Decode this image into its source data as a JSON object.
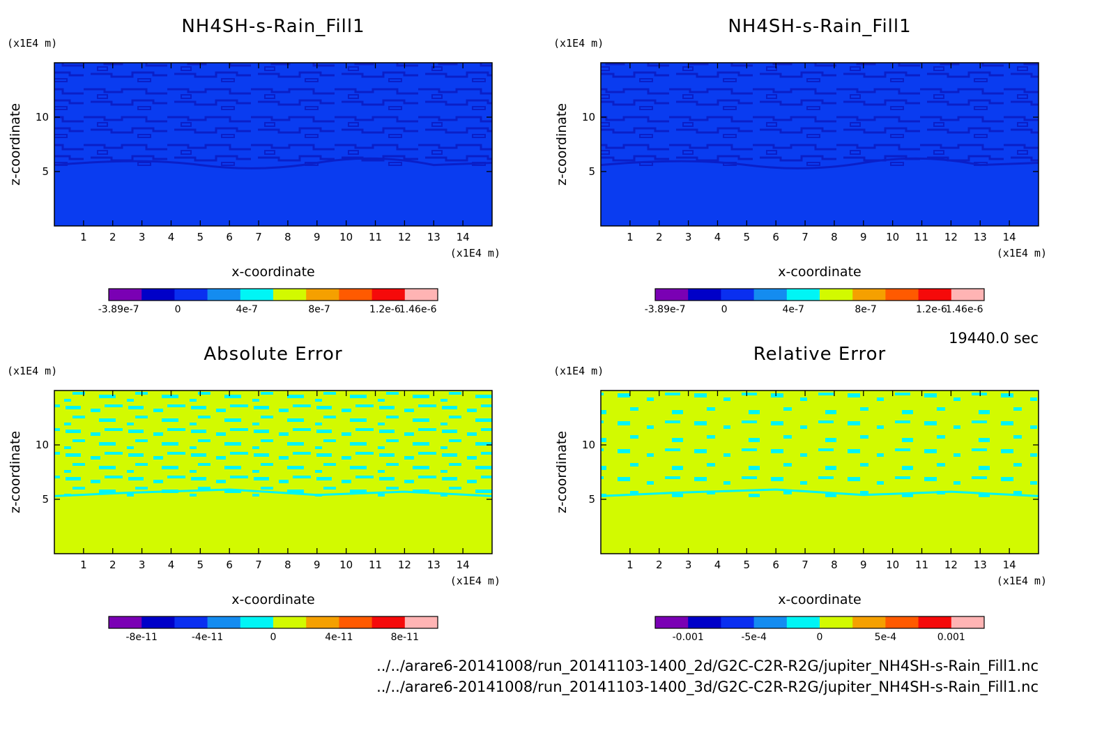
{
  "time_label": "19440.0 sec",
  "files": [
    "../../arare6-20141008/run_20141103-1400_2d/G2C-C2R-R2G/jupiter_NH4SH-s-Rain_Fill1.nc",
    "../../arare6-20141008/run_20141103-1400_3d/G2C-C2R-R2G/jupiter_NH4SH-s-Rain_Fill1.nc"
  ],
  "colors": {
    "palette": [
      "#7a00b4",
      "#0000c8",
      "#0a2ff0",
      "#148cf0",
      "#00f5f5",
      "#d2fa00",
      "#f5a000",
      "#ff5a00",
      "#f50a0a",
      "#ffb4b4"
    ],
    "field_dark": "#0a1fc8",
    "field_main": "#0a3cf0",
    "error_main": "#d2fa00",
    "error_alt": "#00f5f5"
  },
  "chart_data": [
    {
      "type": "heatmap",
      "title": "NH4SH-s-Rain_Fill1",
      "xlabel": "x-coordinate",
      "ylabel": "z-coordinate",
      "x_unit": "(x1E4 m)",
      "y_unit": "(x1E4 m)",
      "xlim": [
        0,
        15
      ],
      "ylim": [
        0,
        15
      ],
      "x_ticks": [
        "1",
        "2",
        "3",
        "4",
        "5",
        "6",
        "7",
        "8",
        "9",
        "10",
        "11",
        "12",
        "13",
        "14"
      ],
      "y_ticks": [
        "5",
        "10"
      ],
      "colorbar_labels": [
        "-3.89e-7",
        "0",
        "4e-7",
        "8e-7",
        "1.2e-6",
        "1.46e-6"
      ],
      "pattern": "field"
    },
    {
      "type": "heatmap",
      "title": "NH4SH-s-Rain_Fill1",
      "xlabel": "x-coordinate",
      "ylabel": "z-coordinate",
      "x_unit": "(x1E4 m)",
      "y_unit": "(x1E4 m)",
      "xlim": [
        0,
        15
      ],
      "ylim": [
        0,
        15
      ],
      "x_ticks": [
        "1",
        "2",
        "3",
        "4",
        "5",
        "6",
        "7",
        "8",
        "9",
        "10",
        "11",
        "12",
        "13",
        "14"
      ],
      "y_ticks": [
        "5",
        "10"
      ],
      "colorbar_labels": [
        "-3.89e-7",
        "0",
        "4e-7",
        "8e-7",
        "1.2e-6",
        "1.46e-6"
      ],
      "pattern": "field"
    },
    {
      "type": "heatmap",
      "title": "Absolute Error",
      "xlabel": "x-coordinate",
      "ylabel": "z-coordinate",
      "x_unit": "(x1E4 m)",
      "y_unit": "(x1E4 m)",
      "xlim": [
        0,
        15
      ],
      "ylim": [
        0,
        15
      ],
      "x_ticks": [
        "1",
        "2",
        "3",
        "4",
        "5",
        "6",
        "7",
        "8",
        "9",
        "10",
        "11",
        "12",
        "13",
        "14"
      ],
      "y_ticks": [
        "5",
        "10"
      ],
      "colorbar_labels": [
        "-8e-11",
        "-4e-11",
        "0",
        "4e-11",
        "8e-11"
      ],
      "pattern": "error"
    },
    {
      "type": "heatmap",
      "title": "Relative Error",
      "xlabel": "x-coordinate",
      "ylabel": "z-coordinate",
      "x_unit": "(x1E4 m)",
      "y_unit": "(x1E4 m)",
      "xlim": [
        0,
        15
      ],
      "ylim": [
        0,
        15
      ],
      "x_ticks": [
        "1",
        "2",
        "3",
        "4",
        "5",
        "6",
        "7",
        "8",
        "9",
        "10",
        "11",
        "12",
        "13",
        "14"
      ],
      "y_ticks": [
        "5",
        "10"
      ],
      "colorbar_labels": [
        "-0.001",
        "-5e-4",
        "0",
        "5e-4",
        "0.001"
      ],
      "pattern": "relerror"
    }
  ]
}
